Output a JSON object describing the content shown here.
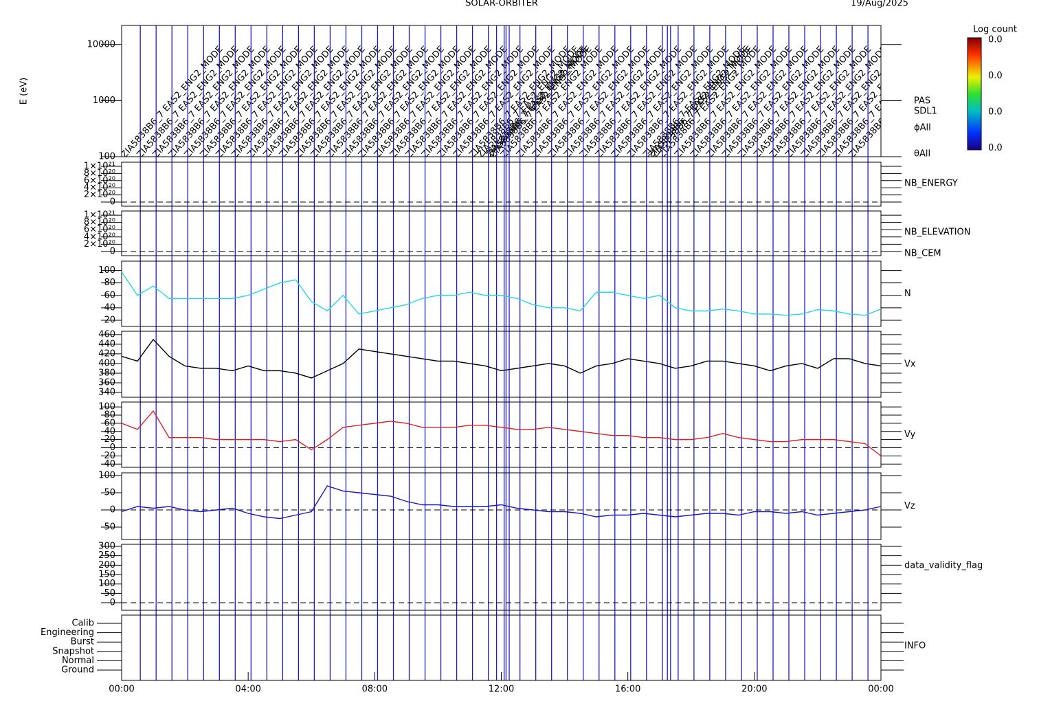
{
  "chart_data": [
    {
      "type": "spectrogram",
      "title": "SOLAR-ORBITER",
      "subtitle": "19/Aug/2025",
      "ylabel": "E (eV)",
      "log_scale": true,
      "ylim": [
        100,
        21900
      ],
      "yticks": [
        100,
        1000,
        10000
      ],
      "labels": [
        "PAS",
        "SDL1",
        "ϕAll",
        "θAll"
      ],
      "colorbar": {
        "label": "Log count",
        "tick_labels": [
          "0.0",
          "0.0",
          "0.0",
          "0.0"
        ]
      },
      "modes": {
        "label": "ZIA5838B6_7  EAS2_ENG2_MODE",
        "color": "#1c1cc0",
        "times": [
          0.59,
          1.09,
          1.59,
          2.09,
          2.59,
          3.09,
          3.59,
          4.09,
          4.59,
          5.09,
          5.59,
          6.09,
          6.59,
          7.09,
          7.59,
          8.09,
          8.59,
          9.09,
          9.59,
          10.09,
          10.59,
          11.09,
          11.59,
          11.85,
          12.09,
          12.15,
          12.25,
          12.59,
          13.09,
          13.59,
          14.09,
          14.59,
          15.09,
          15.59,
          16.09,
          16.59,
          17.09,
          17.25,
          17.35,
          17.59,
          18.09,
          18.59,
          19.09,
          19.59,
          20.09,
          20.59,
          21.09,
          21.59,
          22.09,
          22.59,
          23.09,
          23.59
        ]
      }
    },
    {
      "type": "line",
      "labels": [
        {
          "text": "NB_ENERGY",
          "color": "#22cc22"
        }
      ],
      "zero_line": true,
      "ylim": [
        -1.15e+20,
        1.115e+21
      ],
      "yticks": [
        0,
        {
          "value": 2e+20,
          "label": "2×10²⁰"
        },
        {
          "value": 4e+20,
          "label": "4×10²⁰"
        },
        {
          "value": 6e+20,
          "label": "6×10²⁰"
        },
        {
          "value": 8e+20,
          "label": "8×10²⁰"
        },
        {
          "value": 1e+21,
          "label": "1×10²¹"
        }
      ],
      "series": []
    },
    {
      "type": "line",
      "labels": [
        {
          "text": "NB_ELEVATION",
          "color": "#22cc22"
        },
        {
          "text": "NB_CEM",
          "color": "#2222bb"
        }
      ],
      "zero_line": true,
      "ylim": [
        -1.15e+20,
        1.115e+21
      ],
      "yticks": [
        0,
        {
          "value": 2e+20,
          "label": "2×10²⁰"
        },
        {
          "value": 4e+20,
          "label": "4×10²⁰"
        },
        {
          "value": 6e+20,
          "label": "6×10²⁰"
        },
        {
          "value": 8e+20,
          "label": "8×10²⁰"
        },
        {
          "value": 1e+21,
          "label": "1×10²¹"
        }
      ],
      "series": []
    },
    {
      "type": "line",
      "ylim": [
        10,
        115
      ],
      "yticks": [
        20,
        40,
        60,
        80,
        100
      ],
      "x": [
        0,
        0.5,
        1,
        1.5,
        2,
        2.5,
        3,
        3.5,
        4,
        4.5,
        5,
        5.5,
        6,
        6.5,
        7,
        7.5,
        8,
        8.5,
        9,
        9.5,
        10,
        10.5,
        11,
        11.5,
        12,
        12.5,
        13,
        13.5,
        14,
        14.5,
        15,
        15.5,
        16,
        16.5,
        17,
        17.5,
        18,
        18.5,
        19,
        19.5,
        20,
        20.5,
        21,
        21.5,
        22,
        22.5,
        23,
        23.5,
        24
      ],
      "series": [
        {
          "name": "N",
          "color": "#22d8e8",
          "values": [
            98,
            60,
            75,
            55,
            55,
            55,
            55,
            55,
            60,
            70,
            80,
            85,
            50,
            35,
            60,
            30,
            35,
            40,
            45,
            55,
            60,
            60,
            65,
            60,
            60,
            55,
            45,
            40,
            40,
            35,
            65,
            65,
            60,
            55,
            60,
            40,
            35,
            35,
            38,
            35,
            30,
            30,
            28,
            30,
            37,
            35,
            30,
            28,
            38
          ]
        }
      ]
    },
    {
      "type": "line",
      "ylim": [
        330,
        467
      ],
      "yticks": [
        340,
        360,
        380,
        400,
        420,
        440,
        460
      ],
      "x": [
        0,
        0.5,
        1,
        1.5,
        2,
        2.5,
        3,
        3.5,
        4,
        4.5,
        5,
        5.5,
        6,
        6.5,
        7,
        7.5,
        8,
        8.5,
        9,
        9.5,
        10,
        10.5,
        11,
        11.5,
        12,
        12.5,
        13,
        13.5,
        14,
        14.5,
        15,
        15.5,
        16,
        16.5,
        17,
        17.5,
        18,
        18.5,
        19,
        19.5,
        20,
        20.5,
        21,
        21.5,
        22,
        22.5,
        23,
        23.5,
        24
      ],
      "series": [
        {
          "name": "Vx",
          "color": "#000000",
          "values": [
            415,
            405,
            450,
            415,
            395,
            390,
            390,
            385,
            395,
            385,
            385,
            380,
            370,
            385,
            400,
            430,
            425,
            420,
            415,
            410,
            405,
            405,
            400,
            395,
            385,
            390,
            395,
            400,
            395,
            380,
            395,
            400,
            410,
            405,
            400,
            390,
            395,
            405,
            405,
            400,
            395,
            385,
            395,
            400,
            390,
            410,
            410,
            400,
            395
          ]
        }
      ]
    },
    {
      "type": "line",
      "zero_line": true,
      "ylim": [
        -48,
        112
      ],
      "yticks": [
        -40,
        -20,
        0,
        20,
        40,
        60,
        80,
        100
      ],
      "x": [
        0,
        0.5,
        1,
        1.5,
        2,
        2.5,
        3,
        3.5,
        4,
        4.5,
        5,
        5.5,
        6,
        6.5,
        7,
        7.5,
        8,
        8.5,
        9,
        9.5,
        10,
        10.5,
        11,
        11.5,
        12,
        12.5,
        13,
        13.5,
        14,
        14.5,
        15,
        15.5,
        16,
        16.5,
        17,
        17.5,
        18,
        18.5,
        19,
        19.5,
        20,
        20.5,
        21,
        21.5,
        22,
        22.5,
        23,
        23.5,
        24
      ],
      "series": [
        {
          "name": "Vy",
          "color": "#e02020",
          "values": [
            60,
            45,
            90,
            25,
            25,
            25,
            20,
            20,
            20,
            20,
            15,
            20,
            -5,
            20,
            50,
            55,
            60,
            65,
            60,
            50,
            50,
            50,
            55,
            55,
            50,
            45,
            45,
            50,
            45,
            40,
            35,
            30,
            30,
            25,
            25,
            20,
            20,
            25,
            35,
            25,
            20,
            15,
            15,
            20,
            20,
            20,
            15,
            10,
            -20
          ]
        }
      ]
    },
    {
      "type": "line",
      "zero_line": true,
      "ylim": [
        -86,
        108
      ],
      "yticks": [
        -50,
        0,
        50,
        100
      ],
      "x": [
        0,
        0.5,
        1,
        1.5,
        2,
        2.5,
        3,
        3.5,
        4,
        4.5,
        5,
        5.5,
        6,
        6.5,
        7,
        7.5,
        8,
        8.5,
        9,
        9.5,
        10,
        10.5,
        11,
        11.5,
        12,
        12.5,
        13,
        13.5,
        14,
        14.5,
        15,
        15.5,
        16,
        16.5,
        17,
        17.5,
        18,
        18.5,
        19,
        19.5,
        20,
        20.5,
        21,
        21.5,
        22,
        22.5,
        23,
        23.5,
        24
      ],
      "series": [
        {
          "name": "Vz",
          "color": "#1a1ac0",
          "values": [
            -5,
            10,
            5,
            10,
            0,
            -5,
            0,
            5,
            -10,
            -20,
            -25,
            -15,
            -5,
            70,
            55,
            50,
            45,
            40,
            25,
            15,
            15,
            10,
            10,
            10,
            15,
            5,
            0,
            -5,
            -5,
            -10,
            -20,
            -15,
            -15,
            -10,
            -15,
            -20,
            -15,
            -10,
            -10,
            -15,
            -5,
            -5,
            -10,
            -5,
            -15,
            -10,
            -5,
            0,
            10
          ]
        }
      ]
    },
    {
      "type": "line",
      "labels": [
        {
          "text": "data_validity_flag",
          "color": "#000000"
        }
      ],
      "zero_line": true,
      "ylim": [
        -40,
        311
      ],
      "yticks": [
        0,
        50,
        100,
        150,
        200,
        250,
        300
      ],
      "series": []
    },
    {
      "type": "flags",
      "labels": [
        {
          "text": "INFO",
          "color": "#2222bb"
        }
      ],
      "categories": [
        "Calib",
        "Engineering",
        "Burst",
        "Snapshot",
        "Normal",
        "Ground"
      ],
      "xlim": [
        0,
        24
      ],
      "xticks": [
        {
          "value": 0,
          "label": "00:00"
        },
        {
          "value": 4,
          "label": "04:00"
        },
        {
          "value": 8,
          "label": "08:00"
        },
        {
          "value": 12,
          "label": "12:00"
        },
        {
          "value": 16,
          "label": "16:00"
        },
        {
          "value": 20,
          "label": "20:00"
        },
        {
          "value": 24,
          "label": "00:00"
        }
      ]
    }
  ]
}
